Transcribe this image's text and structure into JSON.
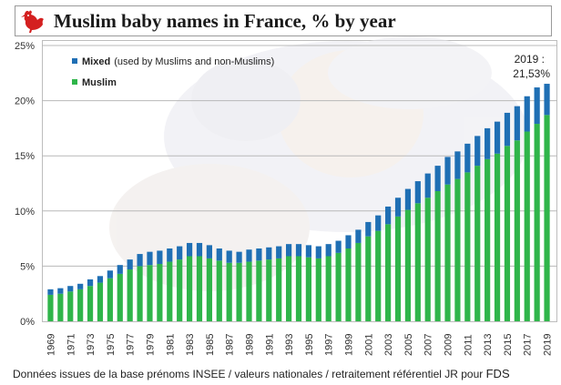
{
  "title": "Muslim baby names in France, % by year",
  "logo": "rooster-icon",
  "source_text": "Données issues de la base prénoms INSEE / valeurs nationales / retraitement référentiel JR pour",
  "source_tag": "FDS",
  "colors": {
    "mixed": "#1f6fb4",
    "muslim": "#2fb54a",
    "grid": "#b8b8b8",
    "axis_text": "#333333",
    "photo_tint": "#e8e8ee"
  },
  "chart_data": {
    "type": "bar",
    "stacked": true,
    "title": "Muslim baby names in France, % by year",
    "annotation": "2019 :\n21,53%",
    "ylim": [
      0,
      25
    ],
    "yticks": [
      "0%",
      "5%",
      "10%",
      "15%",
      "20%",
      "25%"
    ],
    "legend_position": "top-left",
    "grid": true,
    "categories": [
      "1969",
      "1970",
      "1971",
      "1972",
      "1973",
      "1974",
      "1975",
      "1976",
      "1977",
      "1978",
      "1979",
      "1980",
      "1981",
      "1982",
      "1983",
      "1984",
      "1985",
      "1986",
      "1987",
      "1988",
      "1989",
      "1990",
      "1991",
      "1992",
      "1993",
      "1994",
      "1995",
      "1996",
      "1997",
      "1998",
      "1999",
      "2000",
      "2001",
      "2002",
      "2003",
      "2004",
      "2005",
      "2006",
      "2007",
      "2008",
      "2009",
      "2010",
      "2011",
      "2012",
      "2013",
      "2014",
      "2015",
      "2016",
      "2017",
      "2018",
      "2019"
    ],
    "tick_labels": [
      "1969",
      "1971",
      "1973",
      "1975",
      "1977",
      "1979",
      "1981",
      "1983",
      "1985",
      "1987",
      "1989",
      "1991",
      "1993",
      "1995",
      "1997",
      "1999",
      "2001",
      "2003",
      "2005",
      "2007",
      "2009",
      "2011",
      "2013",
      "2015",
      "2017",
      "2019"
    ],
    "series": [
      {
        "name": "Muslim",
        "legend_label": "Muslim",
        "values": [
          2.4,
          2.5,
          2.7,
          2.9,
          3.2,
          3.5,
          3.9,
          4.3,
          4.7,
          5.0,
          5.1,
          5.2,
          5.4,
          5.6,
          5.9,
          5.9,
          5.7,
          5.5,
          5.3,
          5.3,
          5.4,
          5.5,
          5.6,
          5.7,
          5.9,
          5.9,
          5.8,
          5.7,
          5.9,
          6.2,
          6.6,
          7.1,
          7.7,
          8.2,
          8.8,
          9.5,
          10.1,
          10.7,
          11.2,
          11.8,
          12.4,
          12.9,
          13.5,
          14.1,
          14.7,
          15.2,
          15.9,
          16.4,
          17.2,
          17.9,
          18.7
        ]
      },
      {
        "name": "Mixed",
        "legend_label": "Mixed",
        "legend_note": "(used by Muslims and non-Muslims)",
        "values": [
          0.5,
          0.5,
          0.5,
          0.5,
          0.6,
          0.6,
          0.7,
          0.8,
          0.9,
          1.1,
          1.2,
          1.2,
          1.2,
          1.2,
          1.2,
          1.2,
          1.2,
          1.1,
          1.1,
          1.0,
          1.1,
          1.1,
          1.1,
          1.1,
          1.1,
          1.1,
          1.1,
          1.1,
          1.1,
          1.1,
          1.2,
          1.2,
          1.3,
          1.4,
          1.6,
          1.7,
          1.9,
          2.0,
          2.2,
          2.3,
          2.5,
          2.5,
          2.6,
          2.7,
          2.8,
          2.9,
          3.0,
          3.1,
          3.2,
          3.3,
          2.83
        ]
      }
    ]
  }
}
